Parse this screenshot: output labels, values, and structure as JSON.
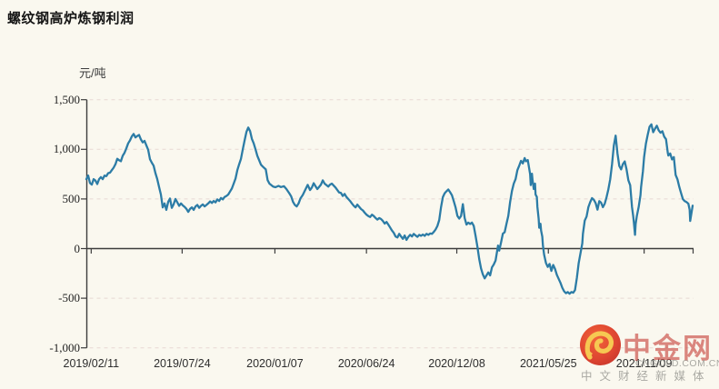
{
  "title": "螺纹钢高炉炼钢利润",
  "unit_label": "元/吨",
  "colors": {
    "background": "#FAF8EF",
    "line": "#2C7CA6",
    "grid": "#E7D8D4",
    "axis": "#3D3D3D",
    "title_text": "#141414",
    "tick_text": "#2E2E2E",
    "watermark_red": "#C8423A",
    "watermark_gray": "#9B9B95",
    "logo_red": "#D93A23",
    "logo_gold": "#F6C445"
  },
  "watermark": {
    "brand": "中金网",
    "domain": "CNGOLD.COM.CN",
    "tagline": "中文财经新媒体",
    "logo_icon": "cngold-cloud-swirl-icon"
  },
  "chart_data": {
    "type": "line",
    "title": "螺纹钢高炉炼钢利润",
    "ylabel": "元/吨",
    "series_name": "螺纹钢高炉炼钢利润",
    "legend": "none",
    "grid": "horizontal-dashed",
    "ylim": [
      -1000,
      1500
    ],
    "ytick_interval": 500,
    "yticks": [
      {
        "value": 1500,
        "label": "1,500"
      },
      {
        "value": 1000,
        "label": "1,000"
      },
      {
        "value": 500,
        "label": "500"
      },
      {
        "value": 0,
        "label": "0"
      },
      {
        "value": -500,
        "label": "-500"
      },
      {
        "value": -1000,
        "label": "-1,000"
      }
    ],
    "xticks": [
      {
        "t": 8,
        "label": "2019/02/11"
      },
      {
        "t": 158,
        "label": "2019/07/24"
      },
      {
        "t": 311,
        "label": "2020/01/07"
      },
      {
        "t": 462,
        "label": "2020/06/24"
      },
      {
        "t": 611,
        "label": "2020/12/08"
      },
      {
        "t": 762,
        "label": "2021/05/25"
      },
      {
        "t": 920,
        "label": "2021/11/09"
      }
    ],
    "points_note": "t = time position 0-1000 across the axis (daily series 2019/02/11 - end), v = profit in yuan/ton",
    "points": [
      [
        0,
        700
      ],
      [
        3,
        735
      ],
      [
        6,
        660
      ],
      [
        9,
        645
      ],
      [
        12,
        700
      ],
      [
        15,
        685
      ],
      [
        18,
        650
      ],
      [
        21,
        700
      ],
      [
        24,
        720
      ],
      [
        27,
        700
      ],
      [
        30,
        735
      ],
      [
        33,
        730
      ],
      [
        36,
        760
      ],
      [
        39,
        765
      ],
      [
        42,
        790
      ],
      [
        45,
        815
      ],
      [
        48,
        850
      ],
      [
        51,
        905
      ],
      [
        54,
        890
      ],
      [
        57,
        880
      ],
      [
        60,
        935
      ],
      [
        63,
        965
      ],
      [
        66,
        1010
      ],
      [
        69,
        1060
      ],
      [
        72,
        1090
      ],
      [
        75,
        1130
      ],
      [
        78,
        1155
      ],
      [
        81,
        1120
      ],
      [
        84,
        1135
      ],
      [
        87,
        1145
      ],
      [
        90,
        1100
      ],
      [
        93,
        1070
      ],
      [
        96,
        1085
      ],
      [
        99,
        1040
      ],
      [
        102,
        995
      ],
      [
        105,
        900
      ],
      [
        108,
        865
      ],
      [
        111,
        835
      ],
      [
        114,
        760
      ],
      [
        117,
        700
      ],
      [
        120,
        620
      ],
      [
        123,
        545
      ],
      [
        126,
        415
      ],
      [
        129,
        455
      ],
      [
        132,
        390
      ],
      [
        135,
        470
      ],
      [
        138,
        505
      ],
      [
        141,
        410
      ],
      [
        144,
        445
      ],
      [
        147,
        500
      ],
      [
        150,
        465
      ],
      [
        153,
        430
      ],
      [
        156,
        455
      ],
      [
        159,
        435
      ],
      [
        162,
        420
      ],
      [
        165,
        400
      ],
      [
        168,
        370
      ],
      [
        171,
        400
      ],
      [
        174,
        415
      ],
      [
        177,
        390
      ],
      [
        180,
        425
      ],
      [
        183,
        440
      ],
      [
        186,
        410
      ],
      [
        189,
        430
      ],
      [
        192,
        445
      ],
      [
        195,
        425
      ],
      [
        198,
        440
      ],
      [
        201,
        455
      ],
      [
        204,
        475
      ],
      [
        207,
        460
      ],
      [
        210,
        480
      ],
      [
        213,
        465
      ],
      [
        216,
        495
      ],
      [
        219,
        480
      ],
      [
        222,
        510
      ],
      [
        225,
        495
      ],
      [
        228,
        520
      ],
      [
        231,
        530
      ],
      [
        234,
        545
      ],
      [
        237,
        575
      ],
      [
        240,
        605
      ],
      [
        243,
        655
      ],
      [
        246,
        705
      ],
      [
        249,
        790
      ],
      [
        252,
        850
      ],
      [
        255,
        905
      ],
      [
        258,
        1000
      ],
      [
        261,
        1090
      ],
      [
        264,
        1175
      ],
      [
        267,
        1220
      ],
      [
        270,
        1185
      ],
      [
        273,
        1105
      ],
      [
        276,
        1060
      ],
      [
        279,
        1000
      ],
      [
        282,
        935
      ],
      [
        285,
        890
      ],
      [
        288,
        845
      ],
      [
        291,
        826
      ],
      [
        296,
        798
      ],
      [
        299,
        690
      ],
      [
        302,
        655
      ],
      [
        305,
        640
      ],
      [
        308,
        625
      ],
      [
        312,
        618
      ],
      [
        317,
        632
      ],
      [
        321,
        620
      ],
      [
        326,
        628
      ],
      [
        330,
        600
      ],
      [
        335,
        555
      ],
      [
        338,
        525
      ],
      [
        341,
        470
      ],
      [
        344,
        440
      ],
      [
        347,
        425
      ],
      [
        350,
        455
      ],
      [
        353,
        505
      ],
      [
        357,
        540
      ],
      [
        360,
        578
      ],
      [
        365,
        642
      ],
      [
        369,
        590
      ],
      [
        372,
        615
      ],
      [
        375,
        658
      ],
      [
        378,
        628
      ],
      [
        381,
        600
      ],
      [
        384,
        622
      ],
      [
        387,
        645
      ],
      [
        390,
        688
      ],
      [
        393,
        655
      ],
      [
        396,
        640
      ],
      [
        399,
        625
      ],
      [
        402,
        645
      ],
      [
        405,
        655
      ],
      [
        408,
        635
      ],
      [
        411,
        615
      ],
      [
        414,
        590
      ],
      [
        417,
        565
      ],
      [
        420,
        560
      ],
      [
        423,
        530
      ],
      [
        426,
        550
      ],
      [
        429,
        520
      ],
      [
        432,
        500
      ],
      [
        435,
        480
      ],
      [
        438,
        455
      ],
      [
        441,
        432
      ],
      [
        444,
        415
      ],
      [
        447,
        443
      ],
      [
        450,
        420
      ],
      [
        453,
        398
      ],
      [
        456,
        385
      ],
      [
        459,
        362
      ],
      [
        462,
        342
      ],
      [
        465,
        328
      ],
      [
        468,
        318
      ],
      [
        471,
        342
      ],
      [
        474,
        328
      ],
      [
        477,
        308
      ],
      [
        480,
        292
      ],
      [
        483,
        308
      ],
      [
        486,
        298
      ],
      [
        489,
        278
      ],
      [
        492,
        252
      ],
      [
        495,
        268
      ],
      [
        498,
        242
      ],
      [
        501,
        212
      ],
      [
        504,
        182
      ],
      [
        507,
        158
      ],
      [
        510,
        122
      ],
      [
        513,
        112
      ],
      [
        516,
        148
      ],
      [
        519,
        122
      ],
      [
        522,
        98
      ],
      [
        525,
        132
      ],
      [
        528,
        88
      ],
      [
        531,
        118
      ],
      [
        534,
        138
      ],
      [
        537,
        122
      ],
      [
        540,
        148
      ],
      [
        543,
        132
      ],
      [
        546,
        118
      ],
      [
        549,
        138
      ],
      [
        552,
        128
      ],
      [
        555,
        142
      ],
      [
        558,
        128
      ],
      [
        561,
        148
      ],
      [
        564,
        138
      ],
      [
        567,
        152
      ],
      [
        570,
        148
      ],
      [
        573,
        168
      ],
      [
        576,
        192
      ],
      [
        579,
        228
      ],
      [
        582,
        288
      ],
      [
        585,
        418
      ],
      [
        588,
        518
      ],
      [
        591,
        558
      ],
      [
        594,
        578
      ],
      [
        597,
        595
      ],
      [
        600,
        568
      ],
      [
        603,
        538
      ],
      [
        606,
        478
      ],
      [
        609,
        415
      ],
      [
        612,
        330
      ],
      [
        615,
        302
      ],
      [
        618,
        328
      ],
      [
        621,
        448
      ],
      [
        624,
        308
      ],
      [
        627,
        242
      ],
      [
        630,
        262
      ],
      [
        633,
        248
      ],
      [
        636,
        262
      ],
      [
        639,
        228
      ],
      [
        642,
        128
      ],
      [
        645,
        20
      ],
      [
        648,
        -105
      ],
      [
        651,
        -200
      ],
      [
        654,
        -260
      ],
      [
        657,
        -300
      ],
      [
        660,
        -270
      ],
      [
        663,
        -240
      ],
      [
        666,
        -270
      ],
      [
        669,
        -190
      ],
      [
        672,
        -160
      ],
      [
        675,
        -120
      ],
      [
        678,
        -10
      ],
      [
        679,
        30
      ],
      [
        681,
        -20
      ],
      [
        684,
        60
      ],
      [
        687,
        150
      ],
      [
        690,
        165
      ],
      [
        693,
        250
      ],
      [
        696,
        330
      ],
      [
        699,
        470
      ],
      [
        702,
        580
      ],
      [
        705,
        655
      ],
      [
        708,
        700
      ],
      [
        711,
        790
      ],
      [
        714,
        835
      ],
      [
        717,
        885
      ],
      [
        720,
        858
      ],
      [
        723,
        912
      ],
      [
        725,
        880
      ],
      [
        728,
        892
      ],
      [
        729,
        860
      ],
      [
        732,
        750
      ],
      [
        733,
        640
      ],
      [
        735,
        755
      ],
      [
        736,
        690
      ],
      [
        738,
        600
      ],
      [
        740,
        655
      ],
      [
        741,
        545
      ],
      [
        743,
        520
      ],
      [
        744,
        420
      ],
      [
        746,
        300
      ],
      [
        747,
        210
      ],
      [
        749,
        250
      ],
      [
        750,
        180
      ],
      [
        752,
        120
      ],
      [
        753,
        30
      ],
      [
        755,
        -60
      ],
      [
        758,
        -145
      ],
      [
        761,
        -185
      ],
      [
        764,
        -155
      ],
      [
        767,
        -225
      ],
      [
        770,
        -165
      ],
      [
        773,
        -205
      ],
      [
        776,
        -265
      ],
      [
        779,
        -305
      ],
      [
        782,
        -345
      ],
      [
        785,
        -395
      ],
      [
        788,
        -430
      ],
      [
        791,
        -450
      ],
      [
        794,
        -438
      ],
      [
        797,
        -455
      ],
      [
        800,
        -438
      ],
      [
        803,
        -445
      ],
      [
        806,
        -418
      ],
      [
        809,
        -298
      ],
      [
        812,
        -148
      ],
      [
        815,
        -48
      ],
      [
        818,
        52
      ],
      [
        819,
        148
      ],
      [
        822,
        282
      ],
      [
        825,
        322
      ],
      [
        828,
        418
      ],
      [
        831,
        468
      ],
      [
        834,
        508
      ],
      [
        837,
        492
      ],
      [
        840,
        458
      ],
      [
        843,
        392
      ],
      [
        846,
        478
      ],
      [
        849,
        462
      ],
      [
        852,
        418
      ],
      [
        855,
        452
      ],
      [
        858,
        518
      ],
      [
        861,
        598
      ],
      [
        864,
        698
      ],
      [
        867,
        848
      ],
      [
        870,
        1038
      ],
      [
        873,
        1138
      ],
      [
        876,
        958
      ],
      [
        879,
        832
      ],
      [
        882,
        798
      ],
      [
        885,
        852
      ],
      [
        888,
        878
      ],
      [
        891,
        798
      ],
      [
        894,
        688
      ],
      [
        897,
        638
      ],
      [
        900,
        418
      ],
      [
        902,
        328
      ],
      [
        903,
        268
      ],
      [
        905,
        138
      ],
      [
        906,
        248
      ],
      [
        908,
        328
      ],
      [
        911,
        418
      ],
      [
        914,
        538
      ],
      [
        915,
        622
      ],
      [
        918,
        778
      ],
      [
        920,
        922
      ],
      [
        923,
        1058
      ],
      [
        926,
        1148
      ],
      [
        929,
        1228
      ],
      [
        932,
        1252
      ],
      [
        935,
        1172
      ],
      [
        938,
        1208
      ],
      [
        941,
        1238
      ],
      [
        944,
        1192
      ],
      [
        947,
        1168
      ],
      [
        950,
        1182
      ],
      [
        953,
        1128
      ],
      [
        956,
        1102
      ],
      [
        959,
        962
      ],
      [
        960,
        938
      ],
      [
        963,
        958
      ],
      [
        966,
        898
      ],
      [
        969,
        922
      ],
      [
        972,
        742
      ],
      [
        975,
        698
      ],
      [
        978,
        622
      ],
      [
        981,
        558
      ],
      [
        984,
        498
      ],
      [
        987,
        478
      ],
      [
        990,
        468
      ],
      [
        993,
        452
      ],
      [
        995,
        392
      ],
      [
        996,
        278
      ],
      [
        999,
        392
      ],
      [
        1000,
        432
      ]
    ]
  }
}
